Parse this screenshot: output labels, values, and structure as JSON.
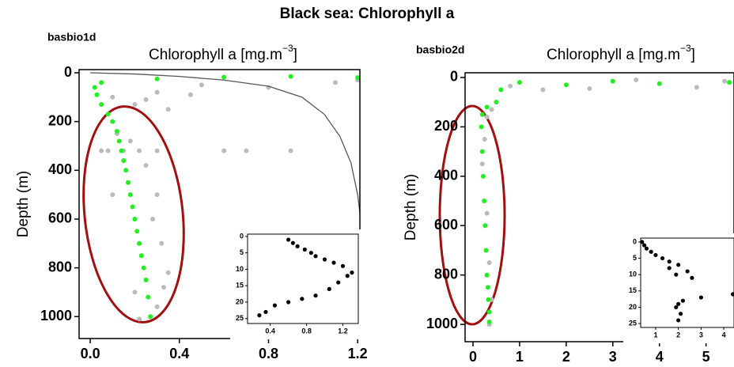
{
  "title": "Black sea: Chlorophyll a",
  "chart_data": [
    {
      "type": "scatter",
      "label": "basbio1d",
      "x_label": "Chlorophyll a [mg.m",
      "x_label_sup": "−3",
      "x_label_end": "]",
      "y_label": "Depth (m)",
      "xlim": [
        -0.05,
        1.21
      ],
      "ylim": [
        -13,
        1090
      ],
      "xticks": [
        {
          "value": 0,
          "label": "0.0"
        },
        0.4,
        0.8,
        1.2
      ],
      "yticks": [
        0,
        200,
        400,
        600,
        800,
        1000
      ],
      "series": [
        {
          "color": "#bbbbbb",
          "x": [
            1.1,
            0.8,
            0.5,
            1.2,
            0.3,
            0.1,
            0.2,
            0.25,
            0.35,
            0.45,
            0.6,
            0.7,
            0.9,
            0.05,
            0.08,
            0.15,
            0.22,
            0.3,
            0.12,
            0.18,
            0.25,
            0.3,
            0.1,
            0.28,
            0.32,
            0.35,
            0.2,
            0.22,
            0.3,
            0.33
          ],
          "y": [
            40,
            60,
            50,
            30,
            80,
            100,
            130,
            110,
            150,
            90,
            320,
            320,
            320,
            320,
            320,
            320,
            320,
            320,
            250,
            280,
            380,
            500,
            500,
            600,
            700,
            820,
            900,
            1010,
            960,
            880
          ]
        },
        {
          "color": "#22ee22",
          "x": [
            1.2,
            0.9,
            0.6,
            0.3,
            0.05,
            0.02,
            0.03,
            0.05,
            0.08,
            0.1,
            0.12,
            0.13,
            0.14,
            0.15,
            0.16,
            0.17,
            0.18,
            0.19,
            0.2,
            0.21,
            0.22,
            0.23,
            0.24,
            0.25,
            0.26,
            0.27
          ],
          "y": [
            20,
            15,
            18,
            25,
            40,
            60,
            90,
            130,
            170,
            200,
            240,
            280,
            320,
            360,
            400,
            450,
            500,
            550,
            600,
            650,
            700,
            750,
            800,
            850,
            920,
            1000
          ]
        },
        {
          "color": "#555555",
          "style": "line",
          "x": [
            0,
            0.2,
            0.4,
            0.6,
            0.8,
            0.95,
            1.05,
            1.12,
            1.17,
            1.2,
            1.22,
            1.23,
            1.24
          ],
          "y": [
            0,
            5,
            15,
            30,
            55,
            100,
            170,
            260,
            370,
            500,
            650,
            820,
            1000
          ]
        }
      ],
      "inset": {
        "xlim": [
          0.15,
          1.37
        ],
        "ylim": [
          -0.7,
          26.5
        ],
        "xticks": [
          0.4,
          0.8,
          1.2
        ],
        "yticks": [
          0,
          5,
          10,
          15,
          20,
          25
        ],
        "x": [
          0.6,
          0.65,
          0.7,
          0.78,
          0.85,
          0.9,
          1.0,
          1.1,
          1.2,
          1.3,
          1.25,
          1.15,
          1.05,
          0.9,
          0.75,
          0.6,
          0.45,
          0.35,
          0.28
        ],
        "y": [
          1,
          2,
          3,
          4,
          5,
          6,
          7,
          8,
          9,
          11,
          12,
          14,
          16,
          18,
          19,
          20,
          21,
          23,
          24
        ]
      }
    },
    {
      "type": "scatter",
      "label": "basbio2d",
      "x_label": "Chlorophyll a [mg.m",
      "x_label_sup": "−3",
      "x_label_end": "]",
      "y_label": "Depth (m)",
      "xlim": [
        -0.17,
        5.6
      ],
      "ylim": [
        -19,
        1070
      ],
      "xticks": [
        0,
        1,
        2,
        3,
        4,
        5
      ],
      "yticks": [
        0,
        200,
        400,
        600,
        800,
        1000
      ],
      "series": [
        {
          "color": "#bbbbbb",
          "x": [
            4.8,
            3.5,
            2.5,
            1.5,
            0.8,
            5.4,
            0.4,
            0.3,
            0.25,
            0.2,
            0.3,
            0.35,
            0.4,
            0.35
          ],
          "y": [
            40,
            10,
            45,
            50,
            35,
            15,
            130,
            160,
            250,
            350,
            550,
            750,
            900,
            1000
          ]
        },
        {
          "color": "#22ee22",
          "x": [
            5.5,
            4,
            3,
            2,
            1,
            0.6,
            0.5,
            0.3,
            0.2,
            0.18,
            0.2,
            0.22,
            0.24,
            0.26,
            0.28,
            0.3,
            0.32,
            0.33,
            0.35,
            0.35
          ],
          "y": [
            20,
            25,
            15,
            30,
            20,
            50,
            100,
            120,
            150,
            200,
            300,
            400,
            500,
            600,
            700,
            800,
            850,
            900,
            950,
            990
          ]
        }
      ],
      "inset": {
        "xlim": [
          0.34,
          4.45
        ],
        "ylim": [
          -1.2,
          26.2
        ],
        "xticks": [
          1,
          2,
          3,
          4
        ],
        "yticks": [
          0,
          5,
          10,
          15,
          20,
          25
        ],
        "x": [
          0.4,
          0.5,
          0.6,
          0.8,
          1.0,
          1.3,
          1.6,
          2.0,
          1.6,
          2.4,
          1.9,
          2.6,
          4.4,
          3.0,
          2.2,
          2.0,
          1.9,
          2.1,
          2.0
        ],
        "y": [
          0,
          1,
          2,
          3,
          4,
          5,
          6,
          7,
          8,
          9,
          10,
          11,
          16,
          17,
          18,
          19,
          20,
          22,
          24
        ]
      }
    }
  ]
}
